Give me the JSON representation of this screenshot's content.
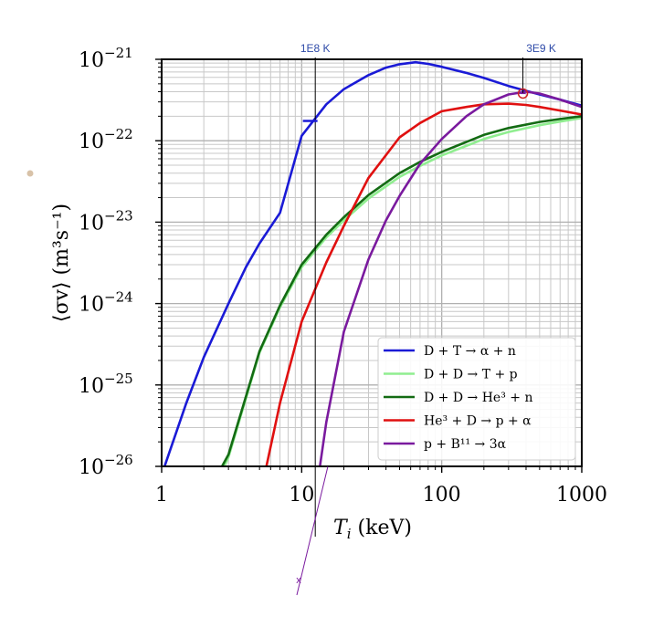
{
  "chart_data": {
    "type": "line",
    "x_scale": "log",
    "y_scale": "log",
    "xlim": [
      1,
      1000
    ],
    "ylim": [
      1e-26,
      1e-21
    ],
    "grid": true,
    "legend_position": "bottom-right",
    "xlabel_base": "T",
    "xlabel_sub": "i",
    "xlabel_unit": " (keV)",
    "ylabel": "⟨σv⟩ (m³s⁻¹)",
    "x_ticks": [
      {
        "value": 1,
        "label": "1"
      },
      {
        "value": 10,
        "label": "10"
      },
      {
        "value": 100,
        "label": "100"
      },
      {
        "value": 1000,
        "label": "1000"
      }
    ],
    "y_ticks": [
      {
        "value": 1e-21,
        "base": "10",
        "exp": "−21"
      },
      {
        "value": 1e-22,
        "base": "10",
        "exp": "−22"
      },
      {
        "value": 1e-23,
        "base": "10",
        "exp": "−23"
      },
      {
        "value": 1e-24,
        "base": "10",
        "exp": "−24"
      },
      {
        "value": 1e-25,
        "base": "10",
        "exp": "−25"
      },
      {
        "value": 1e-26,
        "base": "10",
        "exp": "−26"
      }
    ],
    "series": [
      {
        "name": "D + T → α + n",
        "color": "#1a1ad6",
        "x": [
          1.05,
          1.5,
          2,
          3,
          4,
          5,
          7,
          10,
          15,
          20,
          30,
          40,
          50,
          65,
          80,
          100,
          150,
          200,
          300,
          400,
          500,
          700,
          1000
        ],
        "y": [
          1e-26,
          6e-26,
          2.2e-25,
          1e-24,
          2.8e-24,
          5.5e-24,
          1.3e-23,
          1.15e-22,
          2.8e-22,
          4.3e-22,
          6.4e-22,
          7.9e-22,
          8.7e-22,
          9.2e-22,
          8.8e-22,
          8.1e-22,
          6.8e-22,
          5.9e-22,
          4.7e-22,
          4.1e-22,
          3.7e-22,
          3.2e-22,
          2.7e-22
        ]
      },
      {
        "name": "D + D → T + p",
        "color": "#90ee90",
        "x": [
          2.8,
          3,
          5,
          7,
          10,
          15,
          20,
          30,
          50,
          70,
          100,
          200,
          300,
          500,
          700,
          1000
        ],
        "y": [
          1e-26,
          1.3e-26,
          2.5e-25,
          9e-25,
          2.8e-24,
          6.5e-24,
          1.05e-23,
          1.95e-23,
          3.6e-23,
          4.9e-23,
          6.6e-23,
          1.05e-22,
          1.28e-22,
          1.55e-22,
          1.72e-22,
          1.9e-22
        ]
      },
      {
        "name": "D + D → He³ + n",
        "color": "#136b13",
        "x": [
          2.7,
          3,
          5,
          7,
          10,
          15,
          20,
          30,
          50,
          70,
          100,
          200,
          300,
          500,
          700,
          1000
        ],
        "y": [
          1e-26,
          1.4e-26,
          2.6e-25,
          9.5e-25,
          3e-24,
          7e-24,
          1.15e-23,
          2.15e-23,
          4e-23,
          5.5e-23,
          7.3e-23,
          1.18e-22,
          1.43e-22,
          1.7e-22,
          1.85e-22,
          2e-22
        ]
      },
      {
        "name": "He³ + D → p + α",
        "color": "#e01010",
        "x": [
          5.6,
          7,
          10,
          15,
          20,
          30,
          50,
          70,
          100,
          150,
          200,
          300,
          400,
          500,
          700,
          1000
        ],
        "y": [
          1e-26,
          6e-26,
          6e-25,
          3.2e-24,
          9e-24,
          3.5e-23,
          1.1e-22,
          1.65e-22,
          2.3e-22,
          2.6e-22,
          2.8e-22,
          2.85e-22,
          2.75e-22,
          2.6e-22,
          2.35e-22,
          2.1e-22
        ]
      },
      {
        "name": "p + B¹¹ → 3α",
        "color": "#7a1a9e",
        "x": [
          13.5,
          15,
          20,
          30,
          40,
          50,
          70,
          100,
          150,
          200,
          300,
          400,
          500,
          700,
          1000
        ],
        "y": [
          1e-26,
          3.5e-26,
          4.5e-25,
          3.5e-24,
          1.05e-23,
          2.1e-23,
          5.2e-23,
          1.05e-22,
          2e-22,
          2.8e-22,
          3.7e-22,
          4e-22,
          3.8e-22,
          3.2e-22,
          2.6e-22
        ]
      }
    ],
    "annotations": [
      {
        "label": "1E8 K",
        "x": 12.5
      },
      {
        "label": "3E9 K",
        "x": 380
      }
    ],
    "annotation_marks": {
      "dt_tick": {
        "x": 11.5,
        "y": 1.75e-22
      },
      "circle": {
        "x": 380,
        "y": 3.8e-22
      },
      "cross_label": "x"
    }
  }
}
